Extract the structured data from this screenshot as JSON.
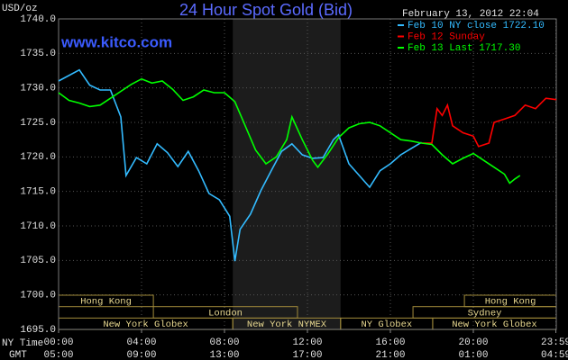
{
  "chart_data": {
    "type": "line",
    "title": "24 Hour Spot Gold (Bid)",
    "y_label": "USD/oz",
    "watermark": "www.kitco.com",
    "timestamp": "February 13, 2012 22:04",
    "x_row_labels": [
      "NY Time",
      "GMT"
    ],
    "xlim": [
      0,
      24
    ],
    "ylim": [
      1695,
      1740
    ],
    "yticks": [
      {
        "value": 1695,
        "label": "1695.0"
      },
      {
        "value": 1700,
        "label": "1700.0"
      },
      {
        "value": 1705,
        "label": "1705.0"
      },
      {
        "value": 1710,
        "label": "1710.0"
      },
      {
        "value": 1715,
        "label": "1715.0"
      },
      {
        "value": 1720,
        "label": "1720.0"
      },
      {
        "value": 1725,
        "label": "1725.0"
      },
      {
        "value": 1730,
        "label": "1730.0"
      },
      {
        "value": 1735,
        "label": "1735.0"
      },
      {
        "value": 1740,
        "label": "1740.0"
      }
    ],
    "xticks": [
      {
        "value": 0,
        "label": "00:00"
      },
      {
        "value": 4,
        "label": "04:00"
      },
      {
        "value": 8,
        "label": "08:00"
      },
      {
        "value": 12,
        "label": "12:00"
      },
      {
        "value": 16,
        "label": "16:00"
      },
      {
        "value": 20,
        "label": "20:00"
      },
      {
        "value": 23.98,
        "label": "23:59"
      }
    ],
    "x2ticks": [
      {
        "value": 0,
        "label": "05:00"
      },
      {
        "value": 4,
        "label": "09:00"
      },
      {
        "value": 8,
        "label": "13:00"
      },
      {
        "value": 12,
        "label": "17:00"
      },
      {
        "value": 16,
        "label": "21:00"
      },
      {
        "value": 20,
        "label": "01:00"
      },
      {
        "value": 23.98,
        "label": "04:59"
      }
    ],
    "grid": true,
    "shade": [
      8.4,
      13.6
    ],
    "sessions": [
      {
        "label": "Hong Kong",
        "row": 0,
        "start": 0,
        "end": 4.57
      },
      {
        "label": "Hong Kong",
        "row": 0,
        "start": 19.57,
        "end": 24
      },
      {
        "label": "London",
        "row": 1,
        "start": 4.57,
        "end": 11.52
      },
      {
        "label": "Sydney",
        "row": 1,
        "start": 17.09,
        "end": 24
      },
      {
        "label": "New York Globex",
        "row": 2,
        "start": 0,
        "end": 8.4
      },
      {
        "label": "New York NYMEX",
        "row": 2,
        "start": 8.4,
        "end": 13.6
      },
      {
        "label": "NY Globex",
        "row": 2,
        "start": 13.6,
        "end": 18.04
      },
      {
        "label": "New York Globex",
        "row": 2,
        "start": 18.04,
        "end": 24
      }
    ],
    "series": [
      {
        "name": "Feb 10 NY close 1722.10",
        "color": "#33bbff",
        "x": [
          0,
          1,
          1.5,
          2,
          2.5,
          3,
          3.25,
          3.75,
          4.25,
          4.75,
          5.25,
          5.75,
          6.25,
          6.75,
          7.25,
          7.75,
          8.25,
          8.5,
          8.75,
          9.25,
          9.75,
          10.25,
          10.75,
          11.25,
          11.75,
          12.25,
          12.75,
          13.25,
          13.5,
          14,
          14.5,
          15,
          15.5,
          16,
          16.5,
          17,
          17.5
        ],
        "values": [
          1731.0,
          1732.6,
          1730.4,
          1729.7,
          1729.7,
          1725.8,
          1717.3,
          1719.9,
          1719.0,
          1721.9,
          1720.6,
          1718.6,
          1720.8,
          1718.0,
          1714.7,
          1713.8,
          1711.4,
          1704.9,
          1709.5,
          1711.7,
          1715.1,
          1718.0,
          1720.8,
          1721.9,
          1720.3,
          1719.8,
          1719.9,
          1722.5,
          1723.2,
          1719.0,
          1717.3,
          1715.6,
          1718.0,
          1719.0,
          1720.3,
          1721.2,
          1722.1
        ]
      },
      {
        "name": "Feb 12 Sunday",
        "color": "#ff0000",
        "x": [
          17.5,
          18,
          18.25,
          18.5,
          18.75,
          19,
          19.5,
          20,
          20.25,
          20.75,
          21,
          21.5,
          22,
          22.5,
          23,
          23.5,
          24
        ],
        "values": [
          1722.0,
          1722.0,
          1727.0,
          1726.0,
          1727.5,
          1724.5,
          1723.5,
          1723.0,
          1721.5,
          1722.0,
          1725.0,
          1725.5,
          1726.0,
          1727.5,
          1727.0,
          1728.5,
          1728.3
        ]
      },
      {
        "name": "Feb 13 Last 1717.30",
        "color": "#00ff00",
        "x": [
          0,
          0.5,
          1,
          1.5,
          2,
          2.5,
          3,
          3.5,
          4,
          4.5,
          5,
          5.5,
          6,
          6.5,
          7,
          7.5,
          8,
          8.5,
          9,
          9.5,
          10,
          10.5,
          11,
          11.25,
          11.75,
          12.25,
          12.5,
          13,
          13.5,
          14,
          14.5,
          15,
          15.5,
          16,
          16.5,
          17,
          17.5,
          18,
          18.5,
          19,
          19.5,
          20,
          20.5,
          21,
          21.5,
          21.75,
          22,
          22.25
        ],
        "values": [
          1729.3,
          1728.2,
          1727.8,
          1727.3,
          1727.5,
          1728.5,
          1729.5,
          1730.5,
          1731.3,
          1730.7,
          1731.0,
          1729.8,
          1728.2,
          1728.7,
          1729.7,
          1729.3,
          1729.3,
          1728.0,
          1724.5,
          1721.0,
          1719.0,
          1720.0,
          1722.5,
          1725.8,
          1722.5,
          1719.5,
          1718.5,
          1720.5,
          1722.8,
          1724.2,
          1724.8,
          1725.0,
          1724.5,
          1723.5,
          1722.5,
          1722.3,
          1722.0,
          1721.8,
          1720.3,
          1719.0,
          1719.8,
          1720.5,
          1719.5,
          1718.5,
          1717.5,
          1716.2,
          1716.8,
          1717.3
        ]
      }
    ]
  }
}
